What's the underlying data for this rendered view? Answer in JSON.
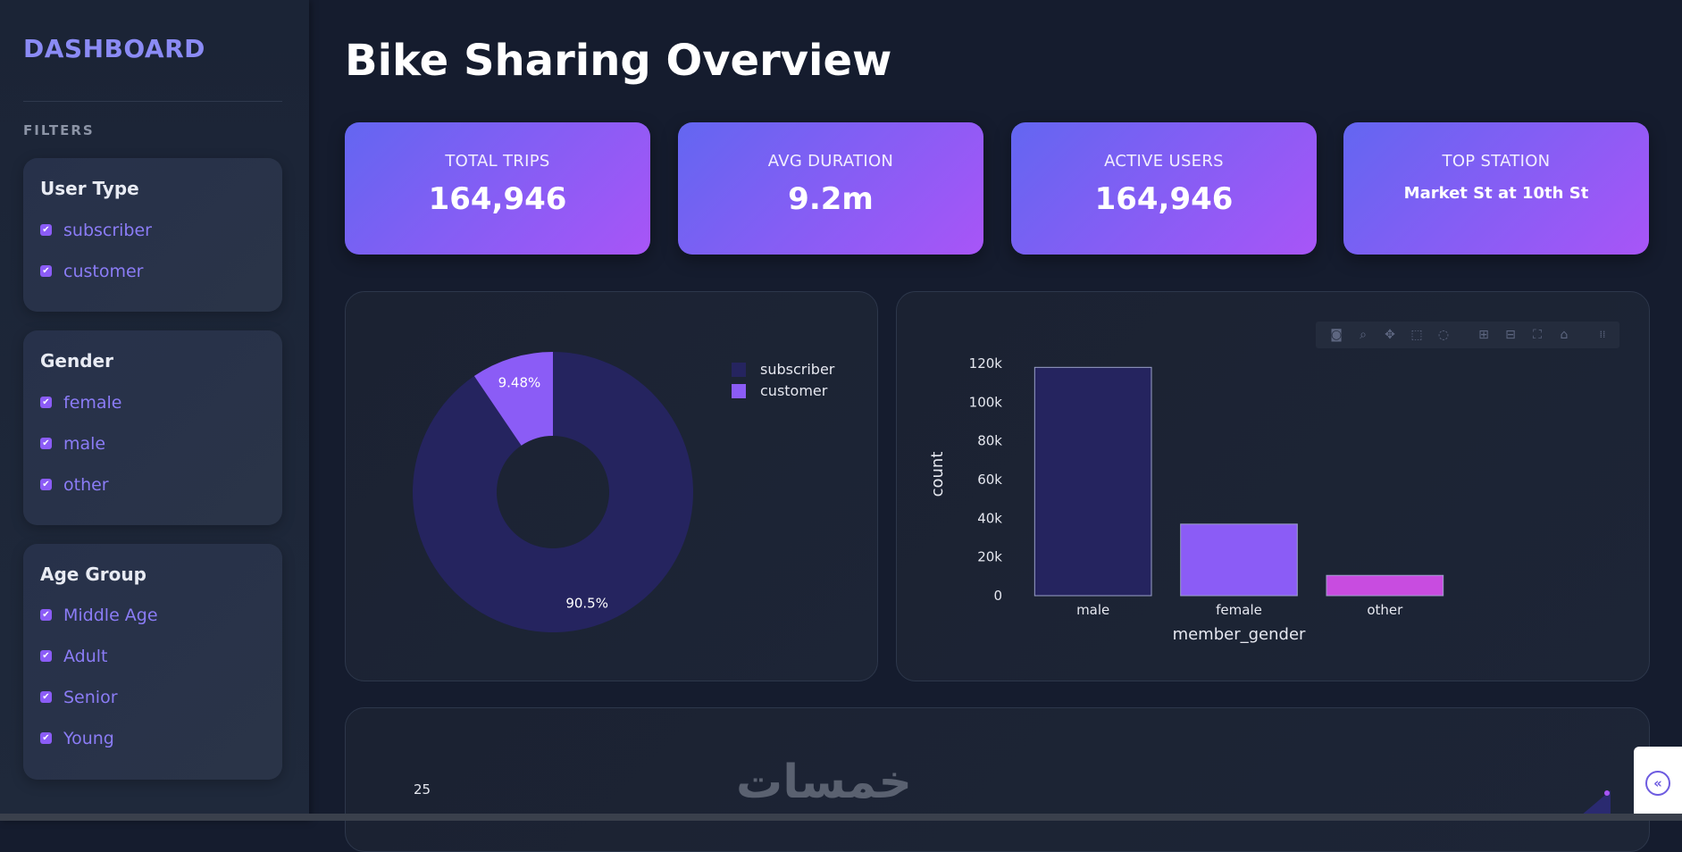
{
  "sidebar": {
    "brand": "DASHBOARD",
    "filters_label": "FILTERS",
    "groups": [
      {
        "title": "User Type",
        "options": [
          "subscriber",
          "customer"
        ]
      },
      {
        "title": "Gender",
        "options": [
          "female",
          "male",
          "other"
        ]
      },
      {
        "title": "Age Group",
        "options": [
          "Middle Age",
          "Adult",
          "Senior",
          "Young"
        ]
      }
    ]
  },
  "main": {
    "title": "Bike Sharing Overview",
    "kpis": [
      {
        "label": "TOTAL TRIPS",
        "value": "164,946"
      },
      {
        "label": "AVG DURATION",
        "value": "9.2m"
      },
      {
        "label": "ACTIVE USERS",
        "value": "164,946"
      },
      {
        "label": "TOP STATION",
        "value": "Market St at 10th St"
      }
    ],
    "bottom_panel_tick": "25",
    "watermark": "خمسات"
  },
  "colors": {
    "subscriber": "#25245f",
    "customer": "#8b5cf6",
    "other_bar": "#c84ce0",
    "accent": "#8b8bf5"
  },
  "toolbar_icons": [
    "camera-icon",
    "zoom-icon",
    "pan-icon",
    "box-select-icon",
    "lasso-icon",
    "zoom-in-icon",
    "zoom-out-icon",
    "autoscale-icon",
    "reset-axes-icon",
    "plotly-logo-icon"
  ],
  "chart_data": [
    {
      "type": "pie",
      "hole": true,
      "labels": [
        "subscriber",
        "customer"
      ],
      "values": [
        90.5,
        9.48
      ],
      "text_labels": [
        "90.5%",
        "9.48%"
      ],
      "legend_position": "top-right"
    },
    {
      "type": "bar",
      "categories": [
        "male",
        "female",
        "other"
      ],
      "values": [
        118000,
        37000,
        10500
      ],
      "xlabel": "member_gender",
      "ylabel": "count",
      "ylim": [
        0,
        120000
      ],
      "yticks": [
        "0",
        "20k",
        "40k",
        "60k",
        "80k",
        "100k",
        "120k"
      ]
    }
  ]
}
